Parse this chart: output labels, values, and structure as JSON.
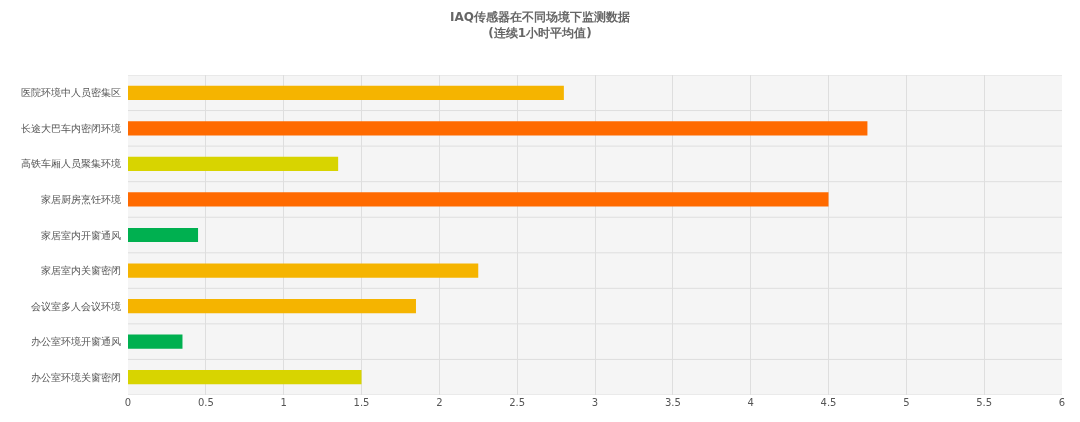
{
  "chart_data": {
    "type": "bar",
    "orientation": "horizontal",
    "title": "IAQ传感器在不同场境下监测数据",
    "subtitle": "(连续1小时平均值)",
    "categories": [
      "医院环境中人员密集区",
      "长途大巴车内密闭环境",
      "高铁车厢人员聚集环境",
      "家居厨房烹饪环境",
      "家居室内开窗通风",
      "家居室内关窗密闭",
      "会议室多人会议环境",
      "办公室环境开窗通风",
      "办公室环境关窗密闭"
    ],
    "values": [
      2.8,
      4.75,
      1.35,
      4.5,
      0.45,
      2.25,
      1.85,
      0.35,
      1.5
    ],
    "colors": [
      "#f5b400",
      "#ff6a00",
      "#d8d400",
      "#ff6a00",
      "#00b050",
      "#f5b400",
      "#f5b400",
      "#00b050",
      "#d8d400"
    ],
    "xlim": [
      0,
      6
    ],
    "xticks": [
      0,
      0.5,
      1,
      1.5,
      2,
      2.5,
      3,
      3.5,
      4,
      4.5,
      5,
      5.5,
      6
    ],
    "grid": true
  }
}
